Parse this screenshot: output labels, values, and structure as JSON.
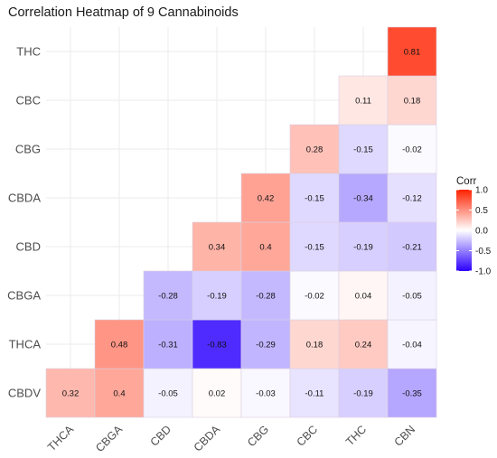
{
  "chart_data": {
    "type": "heatmap",
    "title": "Correlation Heatmap of 9 Cannabinoids",
    "x_categories": [
      "THCA",
      "CBGA",
      "CBD",
      "CBDA",
      "CBG",
      "CBC",
      "THC",
      "CBN"
    ],
    "y_categories": [
      "CBDV",
      "THCA",
      "CBGA",
      "CBD",
      "CBDA",
      "CBG",
      "CBC",
      "THC"
    ],
    "cells": [
      {
        "x": "THCA",
        "y": "CBDV",
        "value": 0.32
      },
      {
        "x": "CBGA",
        "y": "CBDV",
        "value": 0.4
      },
      {
        "x": "CBD",
        "y": "CBDV",
        "value": -0.05
      },
      {
        "x": "CBDA",
        "y": "CBDV",
        "value": 0.02
      },
      {
        "x": "CBG",
        "y": "CBDV",
        "value": -0.03
      },
      {
        "x": "CBC",
        "y": "CBDV",
        "value": -0.11
      },
      {
        "x": "THC",
        "y": "CBDV",
        "value": -0.19
      },
      {
        "x": "CBN",
        "y": "CBDV",
        "value": -0.35
      },
      {
        "x": "CBGA",
        "y": "THCA",
        "value": 0.48
      },
      {
        "x": "CBD",
        "y": "THCA",
        "value": -0.31
      },
      {
        "x": "CBDA",
        "y": "THCA",
        "value": -0.83
      },
      {
        "x": "CBG",
        "y": "THCA",
        "value": -0.29
      },
      {
        "x": "CBC",
        "y": "THCA",
        "value": 0.18
      },
      {
        "x": "THC",
        "y": "THCA",
        "value": 0.24
      },
      {
        "x": "CBN",
        "y": "THCA",
        "value": -0.04
      },
      {
        "x": "CBD",
        "y": "CBGA",
        "value": -0.28
      },
      {
        "x": "CBDA",
        "y": "CBGA",
        "value": -0.19
      },
      {
        "x": "CBG",
        "y": "CBGA",
        "value": -0.28
      },
      {
        "x": "CBC",
        "y": "CBGA",
        "value": -0.02
      },
      {
        "x": "THC",
        "y": "CBGA",
        "value": 0.04
      },
      {
        "x": "CBN",
        "y": "CBGA",
        "value": -0.05
      },
      {
        "x": "CBDA",
        "y": "CBD",
        "value": 0.34
      },
      {
        "x": "CBG",
        "y": "CBD",
        "value": 0.4
      },
      {
        "x": "CBC",
        "y": "CBD",
        "value": -0.15
      },
      {
        "x": "THC",
        "y": "CBD",
        "value": -0.19
      },
      {
        "x": "CBN",
        "y": "CBD",
        "value": -0.21
      },
      {
        "x": "CBG",
        "y": "CBDA",
        "value": 0.42
      },
      {
        "x": "CBC",
        "y": "CBDA",
        "value": -0.15
      },
      {
        "x": "THC",
        "y": "CBDA",
        "value": -0.34
      },
      {
        "x": "CBN",
        "y": "CBDA",
        "value": -0.12
      },
      {
        "x": "CBC",
        "y": "CBG",
        "value": 0.28
      },
      {
        "x": "THC",
        "y": "CBG",
        "value": -0.15
      },
      {
        "x": "CBN",
        "y": "CBG",
        "value": -0.02
      },
      {
        "x": "THC",
        "y": "CBC",
        "value": 0.11
      },
      {
        "x": "CBN",
        "y": "CBC",
        "value": 0.18
      },
      {
        "x": "CBN",
        "y": "THC",
        "value": 0.81
      }
    ],
    "value_range": [
      -1,
      1
    ],
    "colors": {
      "low": "#2b00ff",
      "mid": "#ffffff",
      "high": "#ff2200",
      "grid": "#ebebeb",
      "cell_border": "#d9cfe0"
    },
    "legend": {
      "title": "Corr",
      "position": "right",
      "ticks": [
        {
          "value": 1.0,
          "label": "1.0"
        },
        {
          "value": 0.5,
          "label": "0.5"
        },
        {
          "value": 0.0,
          "label": "0.0"
        },
        {
          "value": -0.5,
          "label": "-0.5"
        },
        {
          "value": -1.0,
          "label": "-1.0"
        }
      ]
    },
    "grid": true
  }
}
